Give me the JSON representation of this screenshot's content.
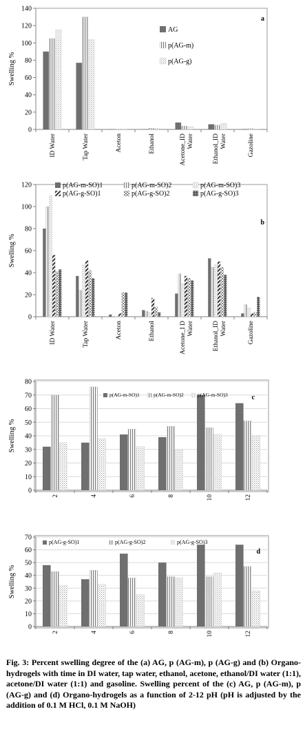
{
  "colors": {
    "axis": "#808080",
    "grid": "#d9d9d9",
    "dark": "#6f6f6f",
    "vstripe": "#7a7a7a",
    "dots": "#9a9a9a",
    "diag": "#333333",
    "check": "#808080",
    "dense": "#5a5a5a"
  },
  "caption": {
    "label": "Fig. 3:",
    "text": "Percent swelling degree of the (a) AG, p (AG-m), p (AG-g) and (b) Organo-hydrogels with time in DI water, tap water, ethanol, acetone, ethanol/DI water (1:1), acetone/DI water (1:1) and gasoline. Swelling percent of the (c) AG, p (AG-m), p (AG-g) and (d) Organo-hydrogels as a function of 2-12 pH (pH is adjusted by the addition of 0.1 M HCl, 0.1 M NaOH)"
  },
  "chart_data": [
    {
      "type": "bar",
      "panel_letter": "a",
      "ylabel": "Swelling %",
      "ylim": [
        0,
        140
      ],
      "yticks": [
        0,
        20,
        40,
        60,
        80,
        100,
        120,
        140
      ],
      "grid": false,
      "legend_position": "center-right",
      "categories": [
        "ID Water",
        "Tap Water",
        "Aceton",
        "Ethanol",
        "Acetone_ID Water",
        "Ethanol_ID Water",
        "Gazoline"
      ],
      "series": [
        {
          "name": "AG",
          "pattern": "dark",
          "values": [
            90,
            77,
            0.3,
            0.3,
            8,
            6,
            0.5
          ]
        },
        {
          "name": "p(AG-m)",
          "pattern": "vstripe",
          "values": [
            105,
            130,
            0.5,
            1.5,
            4,
            5,
            1
          ]
        },
        {
          "name": "p(AG-g)",
          "pattern": "dots",
          "values": [
            115,
            104,
            0.5,
            1.5,
            3,
            7,
            0.5
          ]
        }
      ]
    },
    {
      "type": "bar",
      "panel_letter": "b",
      "ylabel": "Swelling %",
      "ylim": [
        0,
        120
      ],
      "yticks": [
        0,
        20,
        40,
        60,
        80,
        100,
        120
      ],
      "grid": false,
      "legend_position": "top",
      "categories": [
        "ID Water",
        "Tap Water",
        "Aceton",
        "Ethanol",
        "Acetone_I D Water",
        "Ethanol_ID Water",
        "Gazoline"
      ],
      "series": [
        {
          "name": "p(AG-m-SO)1",
          "pattern": "dark",
          "values": [
            80,
            37,
            2,
            6,
            21,
            53,
            3
          ]
        },
        {
          "name": "p(AG-m-SO)2",
          "pattern": "vstripe",
          "values": [
            100,
            24,
            0.5,
            5,
            39,
            45,
            11
          ]
        },
        {
          "name": "p(AG-m-SO)3",
          "pattern": "dots",
          "values": [
            110,
            47,
            0.5,
            4,
            30,
            47,
            8
          ]
        },
        {
          "name": "p(AG-g-SO)1",
          "pattern": "diag",
          "values": [
            56,
            51,
            3,
            17,
            37,
            50,
            3
          ]
        },
        {
          "name": "p(AG-g-SO)2",
          "pattern": "check",
          "values": [
            41,
            42,
            22,
            9,
            35,
            45,
            4
          ]
        },
        {
          "name": "p(AG-g-SO)3",
          "pattern": "dense",
          "values": [
            43,
            35,
            22,
            4,
            33,
            38,
            18
          ]
        }
      ]
    },
    {
      "type": "bar",
      "panel_letter": "c",
      "ylabel": "Swelling %",
      "ylim": [
        0,
        80
      ],
      "yticks": [
        0,
        10,
        20,
        30,
        40,
        50,
        60,
        70,
        80
      ],
      "grid": true,
      "legend_position": "top",
      "categories": [
        "2",
        "4",
        "6",
        "8",
        "10",
        "12"
      ],
      "series": [
        {
          "name": "p(AG-m-SO)1",
          "pattern": "dark",
          "values": [
            32,
            35,
            41,
            39,
            70,
            64
          ]
        },
        {
          "name": "p(AG-m-SO)2",
          "pattern": "vstripe",
          "values": [
            70,
            76,
            45,
            47,
            46,
            51
          ]
        },
        {
          "name": "p(AG-m-SO)3",
          "pattern": "dots",
          "values": [
            35,
            38,
            32,
            30,
            41,
            40
          ]
        }
      ]
    },
    {
      "type": "bar",
      "panel_letter": "d",
      "ylabel": "Swelling %",
      "ylim": [
        0,
        70
      ],
      "yticks": [
        0,
        10,
        20,
        30,
        40,
        50,
        60,
        70
      ],
      "grid": true,
      "legend_position": "top",
      "categories": [
        "2",
        "4",
        "6",
        "8",
        "10",
        "12"
      ],
      "series": [
        {
          "name": "p(AG-g-SO)1",
          "pattern": "dark",
          "values": [
            48,
            37,
            57,
            50,
            64,
            64
          ]
        },
        {
          "name": "p(AG-g-SO)2",
          "pattern": "vstripe",
          "values": [
            43,
            44,
            38,
            39,
            39,
            47
          ]
        },
        {
          "name": "p(AG-g-SO)3",
          "pattern": "dots",
          "values": [
            32,
            33,
            25,
            38,
            42,
            28
          ]
        }
      ]
    }
  ]
}
